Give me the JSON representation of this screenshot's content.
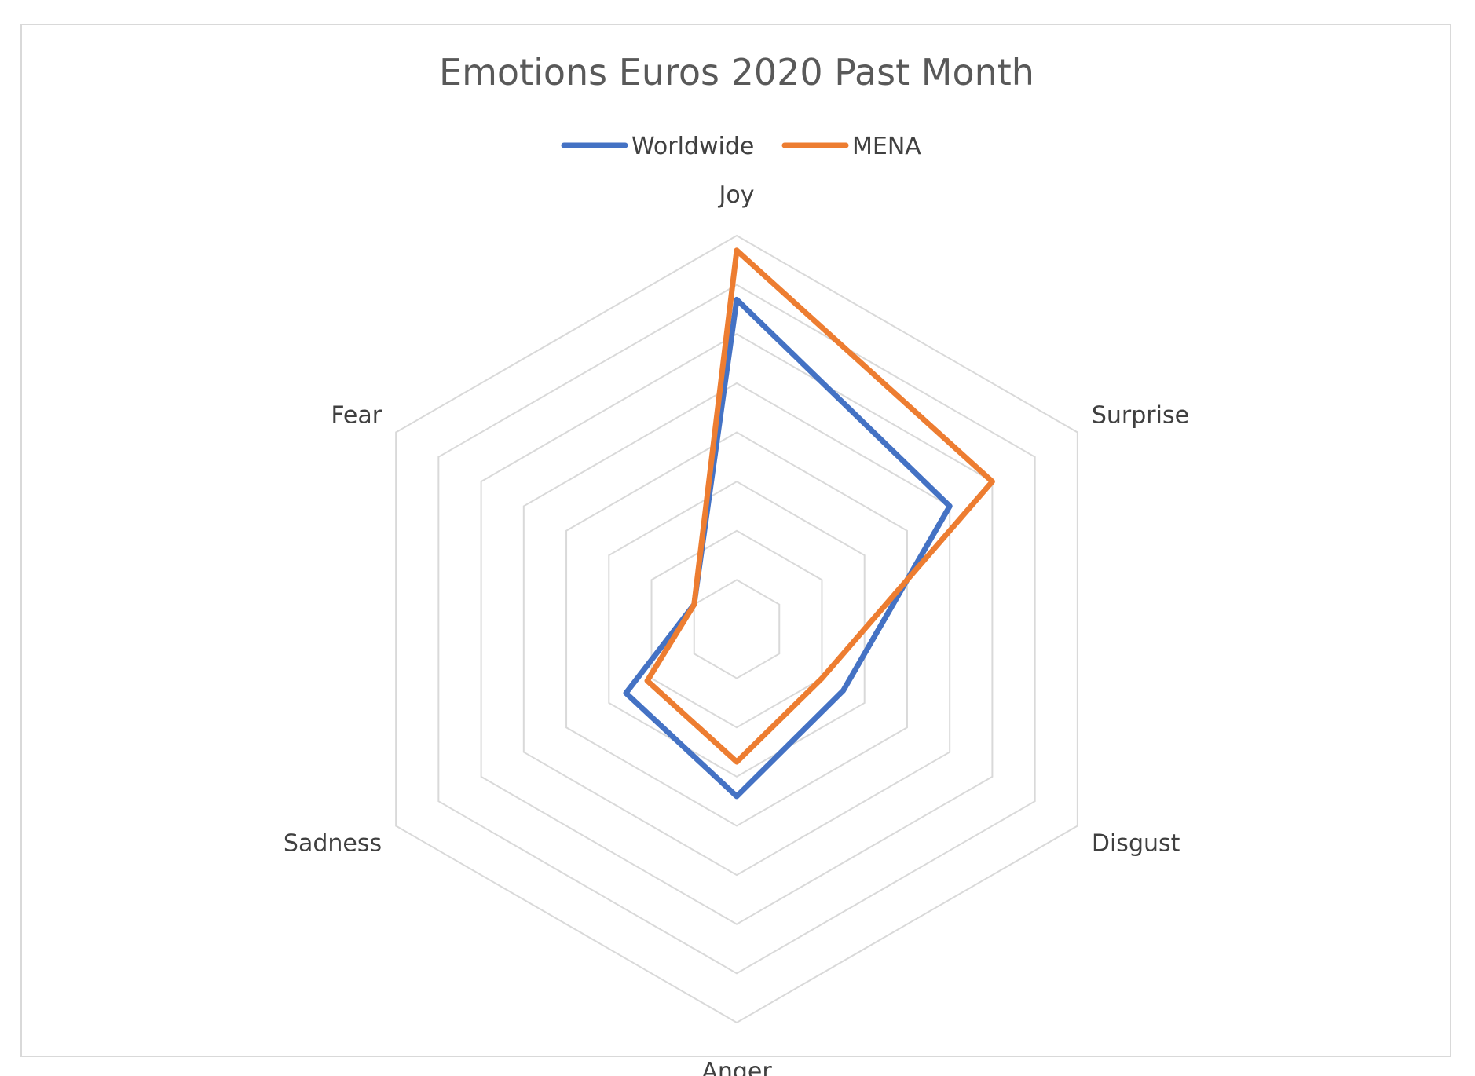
{
  "chart_data": {
    "type": "radar",
    "title": "Emotions Euros 2020 Past Month",
    "categories": [
      "Joy",
      "Surprise",
      "Disgust",
      "Anger",
      "Sadness",
      "Fear"
    ],
    "rlim": [
      0,
      8
    ],
    "ring_count": 8,
    "grid": true,
    "legend_position": "top",
    "series": [
      {
        "name": "Worldwide",
        "color": "#4472c4",
        "values": [
          6.7,
          5.0,
          2.5,
          3.4,
          2.6,
          1.0
        ]
      },
      {
        "name": "MENA",
        "color": "#ed7d31",
        "values": [
          7.7,
          6.0,
          2.0,
          2.7,
          2.1,
          1.0
        ]
      }
    ],
    "colors": {
      "grid": "#d9d9d9",
      "frame": "#d9d9d9",
      "title": "#595959",
      "labels": "#404040"
    }
  }
}
